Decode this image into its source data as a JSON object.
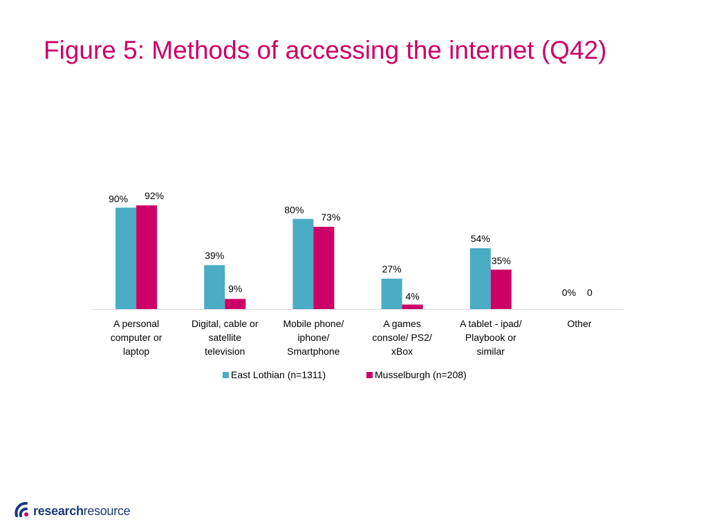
{
  "title": "Figure 5: Methods of accessing the internet (Q42)",
  "colors": {
    "title": "#cc0066",
    "series_1": "#4bacc6",
    "series_2": "#cc0066",
    "logo": "#1a3a7a"
  },
  "chart_data": {
    "type": "bar",
    "title": "",
    "xlabel": "",
    "ylabel": "",
    "ylim": [
      0,
      100
    ],
    "grid": false,
    "legend": "bottom",
    "categories": [
      [
        "A personal",
        "computer or",
        "laptop"
      ],
      [
        "Digital, cable or",
        "satellite",
        "television"
      ],
      [
        "Mobile phone/",
        "iphone/",
        "Smartphone"
      ],
      [
        "A games",
        "console/ PS2/",
        "xBox"
      ],
      [
        "A tablet - ipad/",
        "Playbook or",
        "similar"
      ],
      [
        "Other"
      ]
    ],
    "series": [
      {
        "name": "East Lothian (n=1311)",
        "values": [
          90,
          39,
          80,
          27,
          54,
          0
        ],
        "labels": [
          "90%",
          "39%",
          "80%",
          "27%",
          "54%",
          "0%"
        ]
      },
      {
        "name": "Musselburgh (n=208)",
        "values": [
          92,
          9,
          73,
          4,
          35,
          0
        ],
        "labels": [
          "92%",
          "9%",
          "73%",
          "4%",
          "35%",
          "0"
        ]
      }
    ]
  },
  "logo": {
    "bold": "research",
    "regular": "resource",
    "icon": "research-resource-logo-icon"
  }
}
